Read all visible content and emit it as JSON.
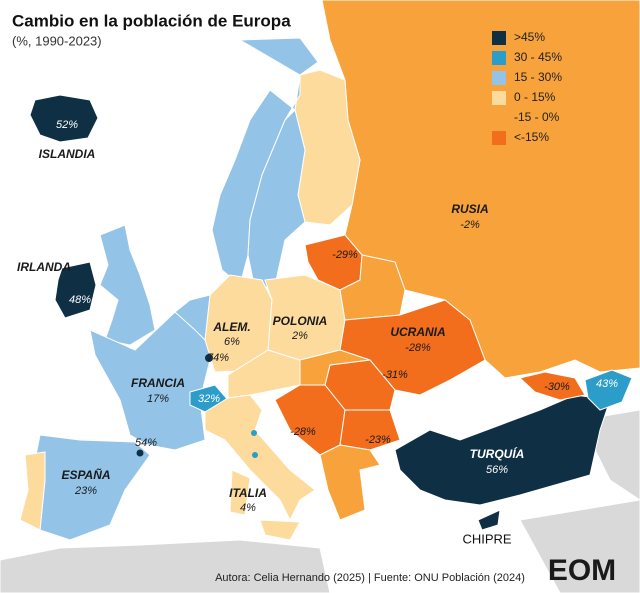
{
  "header": {
    "title": "Cambio en la población de Europa",
    "subtitle": "(%, 1990-2023)"
  },
  "legend": [
    {
      "label": ">45%",
      "color": "#0f2f45"
    },
    {
      "label": "30 - 45%",
      "color": "#2b9dc8"
    },
    {
      "label": "15 - 30%",
      "color": "#93c4e8"
    },
    {
      "label": "0 - 15%",
      "color": "#fcdb9d"
    },
    {
      "label": "-15 - 0%",
      "color": "#f7a23b"
    },
    {
      "label": "<-15%",
      "color": "#f26e1c"
    }
  ],
  "countries": [
    {
      "name": "ISLANDIA",
      "value": "52%"
    },
    {
      "name": "IRLANDA",
      "value": "48%"
    },
    {
      "name": "FRANCIA",
      "value": "17%"
    },
    {
      "name": "ESPAÑA",
      "value": "23%"
    },
    {
      "name": "ALEM.",
      "value": "6%"
    },
    {
      "name": "POLONIA",
      "value": "2%"
    },
    {
      "name": "UCRANIA",
      "value": "-28%"
    },
    {
      "name": "RUSIA",
      "value": "-2%"
    },
    {
      "name": "TURQUÍA",
      "value": "56%"
    },
    {
      "name": "ITALIA",
      "value": "4%"
    },
    {
      "name": "CHIPRE"
    }
  ],
  "values": [
    "74%",
    "32%",
    "54%",
    "-29%",
    "-31%",
    "-30%",
    "43%",
    "-28%",
    "-23%"
  ],
  "footer": {
    "credit": "Autora: Celia Hernando (2025) | Fuente: ONU Población (2024)",
    "logo": "EOM"
  }
}
